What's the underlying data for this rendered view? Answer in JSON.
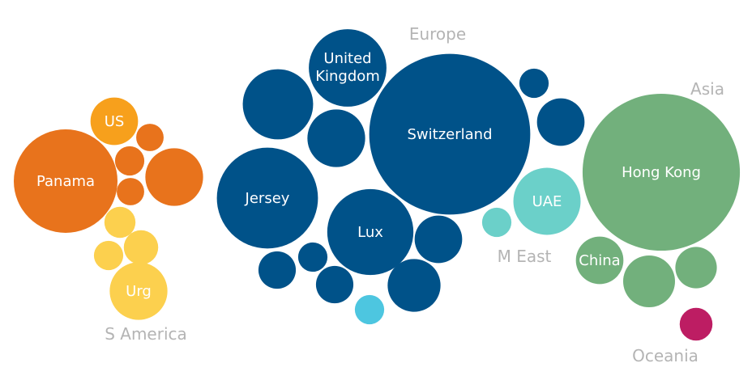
{
  "chart_data": {
    "type": "bubble",
    "title": "",
    "regions": [
      {
        "name": "S America",
        "color": "#e8731c"
      },
      {
        "name": "Europe",
        "color": "#005289"
      },
      {
        "name": "M East",
        "color": "#6bd0c9"
      },
      {
        "name": "Asia",
        "color": "#72b07c"
      },
      {
        "name": "Oceania",
        "color": "#bd1d63"
      }
    ],
    "bubbles": [
      {
        "label": "Panama",
        "region": "S America",
        "value": 100,
        "color": "#e8731c"
      },
      {
        "label": "US",
        "region": "S America",
        "value": 21,
        "color": "#f7a01c"
      },
      {
        "label": "",
        "region": "S America",
        "value": 31,
        "color": "#e8731c"
      },
      {
        "label": "",
        "region": "S America",
        "value": 7,
        "color": "#e8731c"
      },
      {
        "label": "",
        "region": "S America",
        "value": 8,
        "color": "#e8731c"
      },
      {
        "label": "",
        "region": "S America",
        "value": 7,
        "color": "#e8731c"
      },
      {
        "label": "Urg",
        "region": "S America",
        "value": 31,
        "color": "#fcd04e"
      },
      {
        "label": "",
        "region": "S America",
        "value": 9,
        "color": "#fcd04e"
      },
      {
        "label": "",
        "region": "S America",
        "value": 11,
        "color": "#fcd04e"
      },
      {
        "label": "",
        "region": "S America",
        "value": 8,
        "color": "#fcd04e"
      },
      {
        "label": "Switzerland",
        "region": "Europe",
        "value": 241,
        "color": "#005289"
      },
      {
        "label": "Jersey",
        "region": "Europe",
        "value": 95,
        "color": "#005289"
      },
      {
        "label": "Lux",
        "region": "Europe",
        "value": 69,
        "color": "#005289"
      },
      {
        "label": "United Kingdom",
        "region": "Europe",
        "value": 56,
        "color": "#005289"
      },
      {
        "label": "",
        "region": "Europe",
        "value": 46,
        "color": "#005289"
      },
      {
        "label": "",
        "region": "Europe",
        "value": 31,
        "color": "#005289"
      },
      {
        "label": "",
        "region": "Europe",
        "value": 26,
        "color": "#005289"
      },
      {
        "label": "",
        "region": "Europe",
        "value": 21,
        "color": "#005289"
      },
      {
        "label": "",
        "region": "Europe",
        "value": 21,
        "color": "#005289"
      },
      {
        "label": "",
        "region": "Europe",
        "value": 13,
        "color": "#005289"
      },
      {
        "label": "",
        "region": "Europe",
        "value": 13,
        "color": "#005289"
      },
      {
        "label": "",
        "region": "Europe",
        "value": 8,
        "color": "#005289"
      },
      {
        "label": "",
        "region": "Europe",
        "value": 8,
        "color": "#005289"
      },
      {
        "label": "",
        "region": "Europe",
        "value": 8,
        "color": "#4dc6e0"
      },
      {
        "label": "UAE",
        "region": "M East",
        "value": 42,
        "color": "#6bd0c9"
      },
      {
        "label": "",
        "region": "M East",
        "value": 8,
        "color": "#6bd0c9"
      },
      {
        "label": "Hong Kong",
        "region": "Asia",
        "value": 230,
        "color": "#72b07c"
      },
      {
        "label": "China",
        "region": "Asia",
        "value": 21,
        "color": "#72b07c"
      },
      {
        "label": "",
        "region": "Asia",
        "value": 25,
        "color": "#72b07c"
      },
      {
        "label": "",
        "region": "Asia",
        "value": 16,
        "color": "#72b07c"
      },
      {
        "label": "",
        "region": "Oceania",
        "value": 10,
        "color": "#bd1d63"
      }
    ]
  }
}
